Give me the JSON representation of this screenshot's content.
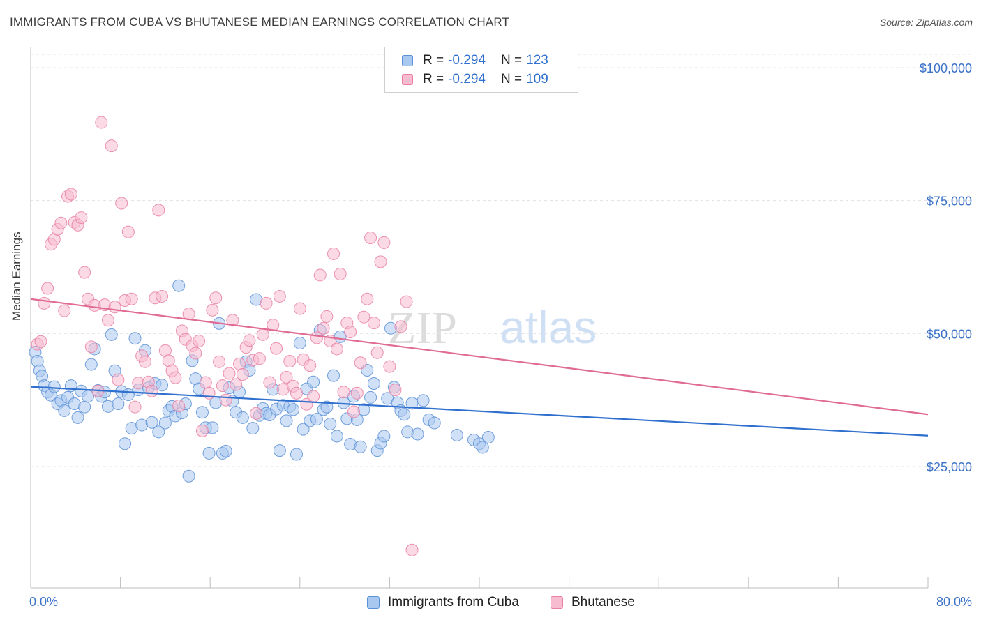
{
  "header": {
    "title": "IMMIGRANTS FROM CUBA VS BHUTANESE MEDIAN EARNINGS CORRELATION CHART",
    "source": "Source: ZipAtlas.com"
  },
  "watermark": {
    "part1": "ZIP",
    "part2": "atlas"
  },
  "legend": {
    "rows": [
      {
        "r_label": "R =",
        "r_value": "-0.294",
        "n_label": "N =",
        "n_value": "123",
        "color": "#a9c8f0",
        "border": "#5b8fd6"
      },
      {
        "r_label": "R =",
        "r_value": "-0.294",
        "n_label": "N =",
        "n_value": "109",
        "color": "#f7bcd0",
        "border": "#e87fa3"
      }
    ]
  },
  "bottom_legend": [
    {
      "label": "Immigrants from Cuba",
      "color": "#a9c8f0",
      "border": "#5b8fd6"
    },
    {
      "label": "Bhutanese",
      "color": "#f7bcd0",
      "border": "#e87fa3"
    }
  ],
  "colors": {
    "blue_point": "#a9c8f0",
    "blue_edge": "#5b8fd6",
    "blue_line": "#2f6fce",
    "pink_point": "#f7bcd0",
    "pink_edge": "#e87fa3",
    "pink_line": "#e06b94",
    "tick_text": "#3c73c9",
    "grid": "#e3e3e3"
  },
  "chart_data": {
    "type": "scatter",
    "title": "IMMIGRANTS FROM CUBA VS BHUTANESE MEDIAN EARNINGS CORRELATION CHART",
    "xlabel": "",
    "ylabel": "Median Earnings",
    "xlim": [
      0,
      80
    ],
    "ylim": [
      0,
      105000
    ],
    "x_tick_labels": [
      "0.0%",
      "80.0%"
    ],
    "y_ticks": [
      25000,
      50000,
      75000,
      100000
    ],
    "y_tick_labels": [
      "$25,000",
      "$50,000",
      "$75,000",
      "$100,000"
    ],
    "grid": true,
    "legend_position": "top-center",
    "series": [
      {
        "name": "Immigrants from Cuba",
        "trend": [
          [
            0,
            40000
          ],
          [
            80,
            30800
          ]
        ],
        "points": [
          [
            0.4,
            46500
          ],
          [
            0.6,
            44800
          ],
          [
            0.8,
            43000
          ],
          [
            1.0,
            42000
          ],
          [
            1.2,
            40200
          ],
          [
            1.5,
            39000
          ],
          [
            1.8,
            38400
          ],
          [
            2.1,
            40000
          ],
          [
            2.4,
            36800
          ],
          [
            2.7,
            37400
          ],
          [
            3.0,
            35500
          ],
          [
            3.3,
            38000
          ],
          [
            3.6,
            40200
          ],
          [
            3.9,
            36800
          ],
          [
            4.2,
            34200
          ],
          [
            4.5,
            39200
          ],
          [
            4.8,
            36200
          ],
          [
            5.1,
            38200
          ],
          [
            5.4,
            44200
          ],
          [
            5.7,
            47100
          ],
          [
            6.0,
            39300
          ],
          [
            6.3,
            38200
          ],
          [
            6.6,
            39000
          ],
          [
            6.9,
            36300
          ],
          [
            7.2,
            49800
          ],
          [
            7.5,
            43000
          ],
          [
            7.8,
            36800
          ],
          [
            8.1,
            39100
          ],
          [
            8.4,
            29300
          ],
          [
            8.7,
            38500
          ],
          [
            9.0,
            32200
          ],
          [
            9.3,
            49100
          ],
          [
            9.6,
            39400
          ],
          [
            9.9,
            32800
          ],
          [
            10.2,
            46800
          ],
          [
            10.5,
            39800
          ],
          [
            10.8,
            33300
          ],
          [
            11.1,
            40600
          ],
          [
            11.4,
            31500
          ],
          [
            11.7,
            40300
          ],
          [
            12.0,
            33200
          ],
          [
            12.3,
            35500
          ],
          [
            12.6,
            36300
          ],
          [
            12.9,
            34500
          ],
          [
            13.2,
            59000
          ],
          [
            13.5,
            35100
          ],
          [
            13.8,
            36800
          ],
          [
            14.1,
            23200
          ],
          [
            14.4,
            44900
          ],
          [
            14.7,
            41500
          ],
          [
            15.0,
            39600
          ],
          [
            15.3,
            35200
          ],
          [
            15.6,
            32300
          ],
          [
            15.9,
            27500
          ],
          [
            16.2,
            32300
          ],
          [
            16.5,
            37000
          ],
          [
            16.8,
            51900
          ],
          [
            17.1,
            27500
          ],
          [
            17.4,
            27900
          ],
          [
            17.7,
            39800
          ],
          [
            18.0,
            37300
          ],
          [
            18.3,
            35200
          ],
          [
            18.6,
            39000
          ],
          [
            18.9,
            34200
          ],
          [
            19.2,
            44700
          ],
          [
            19.5,
            43100
          ],
          [
            19.8,
            32200
          ],
          [
            20.1,
            56400
          ],
          [
            20.4,
            34600
          ],
          [
            20.7,
            35900
          ],
          [
            21.0,
            35000
          ],
          [
            21.3,
            34700
          ],
          [
            21.6,
            39500
          ],
          [
            21.9,
            35800
          ],
          [
            22.2,
            28000
          ],
          [
            22.5,
            36500
          ],
          [
            22.8,
            33600
          ],
          [
            23.1,
            36300
          ],
          [
            23.4,
            35700
          ],
          [
            23.7,
            27300
          ],
          [
            24.0,
            48200
          ],
          [
            24.3,
            32000
          ],
          [
            24.6,
            39600
          ],
          [
            24.9,
            33600
          ],
          [
            25.2,
            40900
          ],
          [
            25.5,
            33900
          ],
          [
            25.8,
            50600
          ],
          [
            26.1,
            35700
          ],
          [
            26.4,
            36200
          ],
          [
            26.7,
            33000
          ],
          [
            27.0,
            42100
          ],
          [
            27.3,
            30700
          ],
          [
            27.6,
            49400
          ],
          [
            27.9,
            37000
          ],
          [
            28.2,
            34000
          ],
          [
            28.5,
            29200
          ],
          [
            28.8,
            38200
          ],
          [
            29.1,
            33800
          ],
          [
            29.4,
            28700
          ],
          [
            29.7,
            35700
          ],
          [
            30.0,
            43100
          ],
          [
            30.3,
            38000
          ],
          [
            30.6,
            40600
          ],
          [
            30.9,
            28000
          ],
          [
            31.2,
            29400
          ],
          [
            31.5,
            30700
          ],
          [
            31.8,
            37800
          ],
          [
            32.1,
            51000
          ],
          [
            32.4,
            39900
          ],
          [
            32.7,
            37000
          ],
          [
            33.0,
            35500
          ],
          [
            33.3,
            34800
          ],
          [
            33.6,
            31500
          ],
          [
            34.0,
            36900
          ],
          [
            34.5,
            31100
          ],
          [
            35.0,
            37400
          ],
          [
            35.5,
            33800
          ],
          [
            36.0,
            33200
          ],
          [
            38.0,
            30900
          ],
          [
            39.5,
            30000
          ],
          [
            40.0,
            29300
          ],
          [
            40.3,
            28600
          ],
          [
            40.8,
            30500
          ]
        ]
      },
      {
        "name": "Bhutanese",
        "trend": [
          [
            0,
            56500
          ],
          [
            80,
            34800
          ]
        ],
        "points": [
          [
            0.6,
            48000
          ],
          [
            0.9,
            48500
          ],
          [
            1.2,
            55700
          ],
          [
            1.5,
            58500
          ],
          [
            1.8,
            66800
          ],
          [
            2.1,
            67700
          ],
          [
            2.4,
            69600
          ],
          [
            2.7,
            70800
          ],
          [
            3.0,
            54300
          ],
          [
            3.3,
            75800
          ],
          [
            3.6,
            76200
          ],
          [
            3.9,
            70900
          ],
          [
            4.2,
            70400
          ],
          [
            4.5,
            71800
          ],
          [
            4.8,
            61500
          ],
          [
            5.1,
            56500
          ],
          [
            5.4,
            47500
          ],
          [
            5.7,
            55300
          ],
          [
            6.0,
            39200
          ],
          [
            6.3,
            89700
          ],
          [
            6.6,
            55400
          ],
          [
            6.9,
            52500
          ],
          [
            7.2,
            85300
          ],
          [
            7.5,
            55000
          ],
          [
            7.8,
            41300
          ],
          [
            8.1,
            74500
          ],
          [
            8.4,
            56200
          ],
          [
            8.7,
            69100
          ],
          [
            9.0,
            56500
          ],
          [
            9.3,
            36200
          ],
          [
            9.6,
            40700
          ],
          [
            9.9,
            45800
          ],
          [
            10.2,
            44700
          ],
          [
            10.5,
            40900
          ],
          [
            10.8,
            39200
          ],
          [
            11.1,
            56700
          ],
          [
            11.4,
            73200
          ],
          [
            11.7,
            57000
          ],
          [
            12.0,
            46800
          ],
          [
            12.3,
            44900
          ],
          [
            12.6,
            43000
          ],
          [
            12.9,
            41700
          ],
          [
            13.2,
            36400
          ],
          [
            13.5,
            50500
          ],
          [
            13.8,
            48900
          ],
          [
            14.1,
            53700
          ],
          [
            14.4,
            47700
          ],
          [
            14.7,
            46300
          ],
          [
            15.0,
            48600
          ],
          [
            15.3,
            31700
          ],
          [
            15.6,
            40800
          ],
          [
            15.9,
            38800
          ],
          [
            16.2,
            54400
          ],
          [
            16.5,
            56700
          ],
          [
            16.8,
            44700
          ],
          [
            17.1,
            40200
          ],
          [
            17.4,
            37500
          ],
          [
            17.7,
            42500
          ],
          [
            18.0,
            52500
          ],
          [
            18.3,
            40400
          ],
          [
            18.6,
            44300
          ],
          [
            18.9,
            42300
          ],
          [
            19.2,
            47400
          ],
          [
            19.5,
            48700
          ],
          [
            19.8,
            45000
          ],
          [
            20.1,
            35000
          ],
          [
            20.4,
            45300
          ],
          [
            20.7,
            49800
          ],
          [
            21.0,
            55700
          ],
          [
            21.3,
            40800
          ],
          [
            21.6,
            51600
          ],
          [
            21.9,
            47200
          ],
          [
            22.2,
            57000
          ],
          [
            22.5,
            39500
          ],
          [
            22.8,
            41800
          ],
          [
            23.1,
            44800
          ],
          [
            23.4,
            40100
          ],
          [
            23.7,
            38800
          ],
          [
            24.0,
            54700
          ],
          [
            24.3,
            45100
          ],
          [
            24.6,
            36700
          ],
          [
            24.9,
            44000
          ],
          [
            25.2,
            38200
          ],
          [
            25.5,
            49200
          ],
          [
            25.8,
            61000
          ],
          [
            26.1,
            51000
          ],
          [
            26.4,
            53200
          ],
          [
            26.7,
            48600
          ],
          [
            27.0,
            65000
          ],
          [
            27.3,
            47100
          ],
          [
            27.6,
            61200
          ],
          [
            27.9,
            39000
          ],
          [
            28.2,
            52000
          ],
          [
            28.5,
            50300
          ],
          [
            28.8,
            35300
          ],
          [
            29.1,
            38800
          ],
          [
            29.4,
            44500
          ],
          [
            29.7,
            53100
          ],
          [
            30.0,
            56500
          ],
          [
            30.3,
            68000
          ],
          [
            30.6,
            52000
          ],
          [
            30.9,
            46400
          ],
          [
            31.2,
            63500
          ],
          [
            31.5,
            67100
          ],
          [
            32.0,
            43800
          ],
          [
            32.5,
            39400
          ],
          [
            33.0,
            51300
          ],
          [
            33.5,
            56000
          ],
          [
            34.0,
            9300
          ]
        ]
      }
    ]
  }
}
